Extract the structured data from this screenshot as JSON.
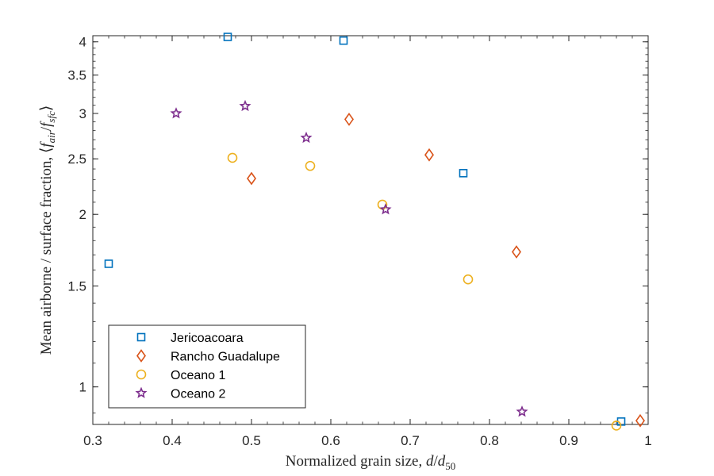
{
  "chart_data": {
    "type": "scatter",
    "xlabel": "Normalized grain size, d/d50",
    "ylabel": "Mean airborne / surface fraction, ⟨fair/fsfc⟩",
    "xlim": [
      0.3,
      1.0
    ],
    "ylim": [
      0.86,
      4.1
    ],
    "y_scale": "log",
    "grid": false,
    "legend_position": "bottom-left",
    "x_ticks": [
      0.3,
      0.4,
      0.5,
      0.6,
      0.7,
      0.8,
      0.9,
      1.0
    ],
    "x_tick_labels": [
      "0.3",
      "0.4",
      "0.5",
      "0.6",
      "0.7",
      "0.8",
      "0.9",
      "1"
    ],
    "y_ticks": [
      1,
      1.5,
      2,
      2.5,
      3,
      3.5,
      4
    ],
    "y_tick_labels": [
      "1",
      "1.5",
      "2",
      "2.5",
      "3",
      "3.5",
      "4"
    ],
    "series": [
      {
        "name": "Jericoacoara",
        "marker": "square",
        "color": "#0072BD",
        "points": [
          [
            0.32,
            1.64
          ],
          [
            0.47,
            4.08
          ],
          [
            0.616,
            4.02
          ],
          [
            0.767,
            2.36
          ],
          [
            0.966,
            0.87
          ]
        ]
      },
      {
        "name": "Rancho Guadalupe",
        "marker": "diamond",
        "color": "#D95319",
        "points": [
          [
            0.5,
            2.31
          ],
          [
            0.623,
            2.93
          ],
          [
            0.724,
            2.54
          ],
          [
            0.834,
            1.72
          ],
          [
            0.99,
            0.873
          ]
        ]
      },
      {
        "name": "Oceano 1",
        "marker": "circle",
        "color": "#EDB120",
        "points": [
          [
            0.476,
            2.51
          ],
          [
            0.574,
            2.43
          ],
          [
            0.665,
            2.08
          ],
          [
            0.773,
            1.54
          ],
          [
            0.96,
            0.856
          ]
        ]
      },
      {
        "name": "Oceano 2",
        "marker": "star",
        "color": "#7E2F8E",
        "points": [
          [
            0.405,
            3.0
          ],
          [
            0.492,
            3.09
          ],
          [
            0.569,
            2.72
          ],
          [
            0.669,
            2.04
          ],
          [
            0.841,
            0.905
          ]
        ]
      }
    ]
  }
}
